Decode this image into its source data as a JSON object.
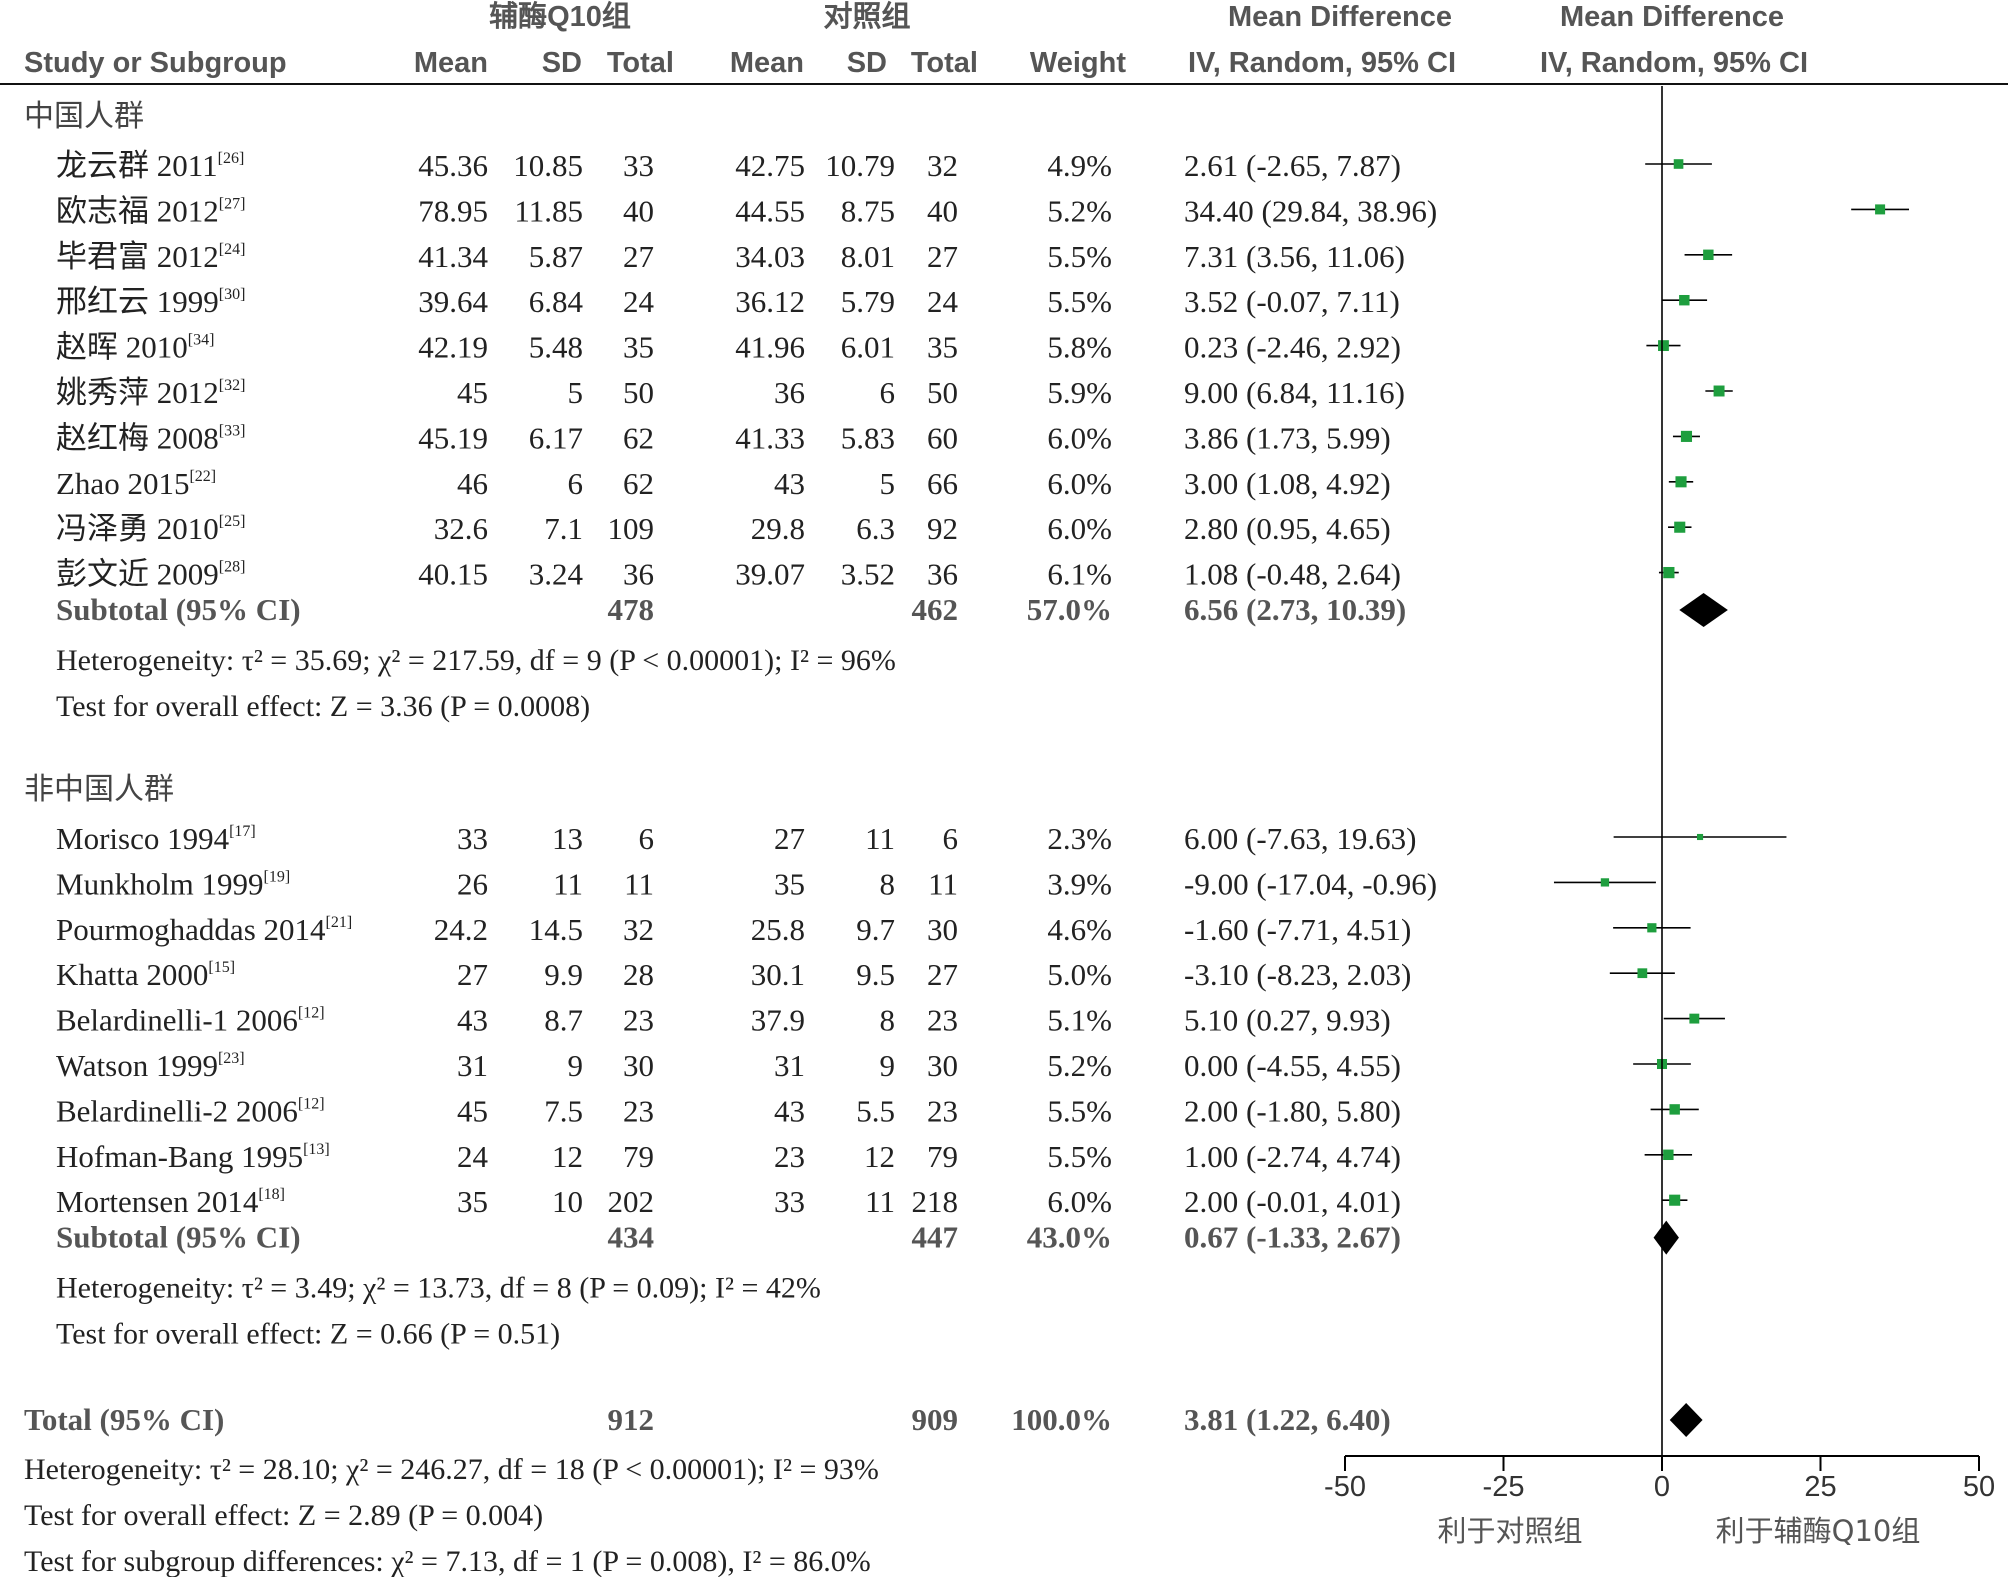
{
  "header": {
    "group1": "辅酶Q10组",
    "group2": "对照组",
    "md1": "Mean Difference",
    "md2": "Mean Difference",
    "study_col": "Study or Subgroup",
    "mean1": "Mean",
    "sd1": "SD",
    "total1": "Total",
    "mean2": "Mean",
    "sd2": "SD",
    "total2": "Total",
    "weight": "Weight",
    "ci1": "IV, Random, 95% CI",
    "ci2": "IV, Random, 95% CI"
  },
  "chart_data": {
    "type": "forest",
    "xlim": [
      -50,
      50
    ],
    "xticks": [
      "-50",
      "-25",
      "0",
      "25",
      "50"
    ],
    "axis_left_label": "利于对照组",
    "axis_right_label": "利于辅酶Q10组",
    "subgroups": [
      {
        "title": "中国人群",
        "studies": [
          {
            "name": "龙云群 2011",
            "ref": "[26]",
            "mean1": "45.36",
            "sd1": "10.85",
            "total1": "33",
            "mean2": "42.75",
            "sd2": "10.79",
            "total2": "32",
            "weight": "4.9%",
            "ci_text": "2.61 (-2.65, 7.87)",
            "md": 2.61,
            "lo": -2.65,
            "hi": 7.87
          },
          {
            "name": "欧志福 2012",
            "ref": "[27]",
            "mean1": "78.95",
            "sd1": "11.85",
            "total1": "40",
            "mean2": "44.55",
            "sd2": "8.75",
            "total2": "40",
            "weight": "5.2%",
            "ci_text": "34.40 (29.84, 38.96)",
            "md": 34.4,
            "lo": 29.84,
            "hi": 38.96
          },
          {
            "name": "毕君富 2012",
            "ref": "[24]",
            "mean1": "41.34",
            "sd1": "5.87",
            "total1": "27",
            "mean2": "34.03",
            "sd2": "8.01",
            "total2": "27",
            "weight": "5.5%",
            "ci_text": "7.31 (3.56, 11.06)",
            "md": 7.31,
            "lo": 3.56,
            "hi": 11.06
          },
          {
            "name": "邢红云 1999",
            "ref": "[30]",
            "mean1": "39.64",
            "sd1": "6.84",
            "total1": "24",
            "mean2": "36.12",
            "sd2": "5.79",
            "total2": "24",
            "weight": "5.5%",
            "ci_text": "3.52 (-0.07, 7.11)",
            "md": 3.52,
            "lo": -0.07,
            "hi": 7.11
          },
          {
            "name": "赵晖 2010",
            "ref": "[34]",
            "mean1": "42.19",
            "sd1": "5.48",
            "total1": "35",
            "mean2": "41.96",
            "sd2": "6.01",
            "total2": "35",
            "weight": "5.8%",
            "ci_text": "0.23 (-2.46, 2.92)",
            "md": 0.23,
            "lo": -2.46,
            "hi": 2.92
          },
          {
            "name": "姚秀萍 2012",
            "ref": "[32]",
            "mean1": "45",
            "sd1": "5",
            "total1": "50",
            "mean2": "36",
            "sd2": "6",
            "total2": "50",
            "weight": "5.9%",
            "ci_text": "9.00 (6.84, 11.16)",
            "md": 9.0,
            "lo": 6.84,
            "hi": 11.16
          },
          {
            "name": "赵红梅 2008",
            "ref": "[33]",
            "mean1": "45.19",
            "sd1": "6.17",
            "total1": "62",
            "mean2": "41.33",
            "sd2": "5.83",
            "total2": "60",
            "weight": "6.0%",
            "ci_text": "3.86 (1.73, 5.99)",
            "md": 3.86,
            "lo": 1.73,
            "hi": 5.99
          },
          {
            "name": "Zhao 2015",
            "ref": "[22]",
            "mean1": "46",
            "sd1": "6",
            "total1": "62",
            "mean2": "43",
            "sd2": "5",
            "total2": "66",
            "weight": "6.0%",
            "ci_text": "3.00 (1.08, 4.92)",
            "md": 3.0,
            "lo": 1.08,
            "hi": 4.92
          },
          {
            "name": "冯泽勇 2010",
            "ref": "[25]",
            "mean1": "32.6",
            "sd1": "7.1",
            "total1": "109",
            "mean2": "29.8",
            "sd2": "6.3",
            "total2": "92",
            "weight": "6.0%",
            "ci_text": "2.80 (0.95, 4.65)",
            "md": 2.8,
            "lo": 0.95,
            "hi": 4.65
          },
          {
            "name": "彭文近 2009",
            "ref": "[28]",
            "mean1": "40.15",
            "sd1": "3.24",
            "total1": "36",
            "mean2": "39.07",
            "sd2": "3.52",
            "total2": "36",
            "weight": "6.1%",
            "ci_text": "1.08 (-0.48, 2.64)",
            "md": 1.08,
            "lo": -0.48,
            "hi": 2.64
          }
        ],
        "subtotal": {
          "label": "Subtotal (95% CI)",
          "total1": "478",
          "total2": "462",
          "weight": "57.0%",
          "ci_text": "6.56 (2.73, 10.39)",
          "md": 6.56,
          "lo": 2.73,
          "hi": 10.39
        },
        "heterogeneity": "Heterogeneity: τ² = 35.69; χ² = 217.59, df = 9 (P < 0.00001); I² = 96%",
        "overall": "Test for overall effect: Z = 3.36 (P = 0.0008)"
      },
      {
        "title": "非中国人群",
        "studies": [
          {
            "name": "Morisco 1994",
            "ref": "[17]",
            "mean1": "33",
            "sd1": "13",
            "total1": "6",
            "mean2": "27",
            "sd2": "11",
            "total2": "6",
            "weight": "2.3%",
            "ci_text": "6.00 (-7.63, 19.63)",
            "md": 6.0,
            "lo": -7.63,
            "hi": 19.63
          },
          {
            "name": "Munkholm 1999",
            "ref": "[19]",
            "mean1": "26",
            "sd1": "11",
            "total1": "11",
            "mean2": "35",
            "sd2": "8",
            "total2": "11",
            "weight": "3.9%",
            "ci_text": "-9.00 (-17.04, -0.96)",
            "md": -9.0,
            "lo": -17.04,
            "hi": -0.96
          },
          {
            "name": "Pourmoghaddas 2014",
            "ref": "[21]",
            "mean1": "24.2",
            "sd1": "14.5",
            "total1": "32",
            "mean2": "25.8",
            "sd2": "9.7",
            "total2": "30",
            "weight": "4.6%",
            "ci_text": "-1.60 (-7.71, 4.51)",
            "md": -1.6,
            "lo": -7.71,
            "hi": 4.51
          },
          {
            "name": "Khatta 2000",
            "ref": "[15]",
            "mean1": "27",
            "sd1": "9.9",
            "total1": "28",
            "mean2": "30.1",
            "sd2": "9.5",
            "total2": "27",
            "weight": "5.0%",
            "ci_text": "-3.10 (-8.23, 2.03)",
            "md": -3.1,
            "lo": -8.23,
            "hi": 2.03
          },
          {
            "name": "Belardinelli-1 2006",
            "ref": "[12]",
            "mean1": "43",
            "sd1": "8.7",
            "total1": "23",
            "mean2": "37.9",
            "sd2": "8",
            "total2": "23",
            "weight": "5.1%",
            "ci_text": "5.10 (0.27, 9.93)",
            "md": 5.1,
            "lo": 0.27,
            "hi": 9.93
          },
          {
            "name": "Watson 1999",
            "ref": "[23]",
            "mean1": "31",
            "sd1": "9",
            "total1": "30",
            "mean2": "31",
            "sd2": "9",
            "total2": "30",
            "weight": "5.2%",
            "ci_text": "0.00 (-4.55, 4.55)",
            "md": 0.0,
            "lo": -4.55,
            "hi": 4.55
          },
          {
            "name": "Belardinelli-2 2006",
            "ref": "[12]",
            "mean1": "45",
            "sd1": "7.5",
            "total1": "23",
            "mean2": "43",
            "sd2": "5.5",
            "total2": "23",
            "weight": "5.5%",
            "ci_text": "2.00 (-1.80, 5.80)",
            "md": 2.0,
            "lo": -1.8,
            "hi": 5.8
          },
          {
            "name": "Hofman-Bang 1995",
            "ref": "[13]",
            "mean1": "24",
            "sd1": "12",
            "total1": "79",
            "mean2": "23",
            "sd2": "12",
            "total2": "79",
            "weight": "5.5%",
            "ci_text": "1.00 (-2.74, 4.74)",
            "md": 1.0,
            "lo": -2.74,
            "hi": 4.74
          },
          {
            "name": "Mortensen 2014",
            "ref": "[18]",
            "mean1": "35",
            "sd1": "10",
            "total1": "202",
            "mean2": "33",
            "sd2": "11",
            "total2": "218",
            "weight": "6.0%",
            "ci_text": "2.00 (-0.01, 4.01)",
            "md": 2.0,
            "lo": -0.01,
            "hi": 4.01
          }
        ],
        "subtotal": {
          "label": "Subtotal (95% CI)",
          "total1": "434",
          "total2": "447",
          "weight": "43.0%",
          "ci_text": "0.67 (-1.33, 2.67)",
          "md": 0.67,
          "lo": -1.33,
          "hi": 2.67
        },
        "heterogeneity": "Heterogeneity: τ² = 3.49; χ² = 13.73, df = 8 (P = 0.09); I² = 42%",
        "overall": "Test for overall effect: Z = 0.66 (P = 0.51)"
      }
    ],
    "total": {
      "label": "Total (95% CI)",
      "total1": "912",
      "total2": "909",
      "weight": "100.0%",
      "ci_text": "3.81 (1.22, 6.40)",
      "md": 3.81,
      "lo": 1.22,
      "hi": 6.4
    },
    "footer": [
      "Heterogeneity: τ² = 28.10; χ² = 246.27, df = 18 (P < 0.00001); I² = 93%",
      "Test for overall effect: Z = 2.89 (P = 0.004)",
      "Test for subgroup differences: χ² = 7.13, df = 1 (P = 0.008), I² = 86.0%"
    ]
  },
  "colors": {
    "marker": "#1e9e3e",
    "diamond": "#000000",
    "text": "#222222",
    "header": "#555555"
  }
}
